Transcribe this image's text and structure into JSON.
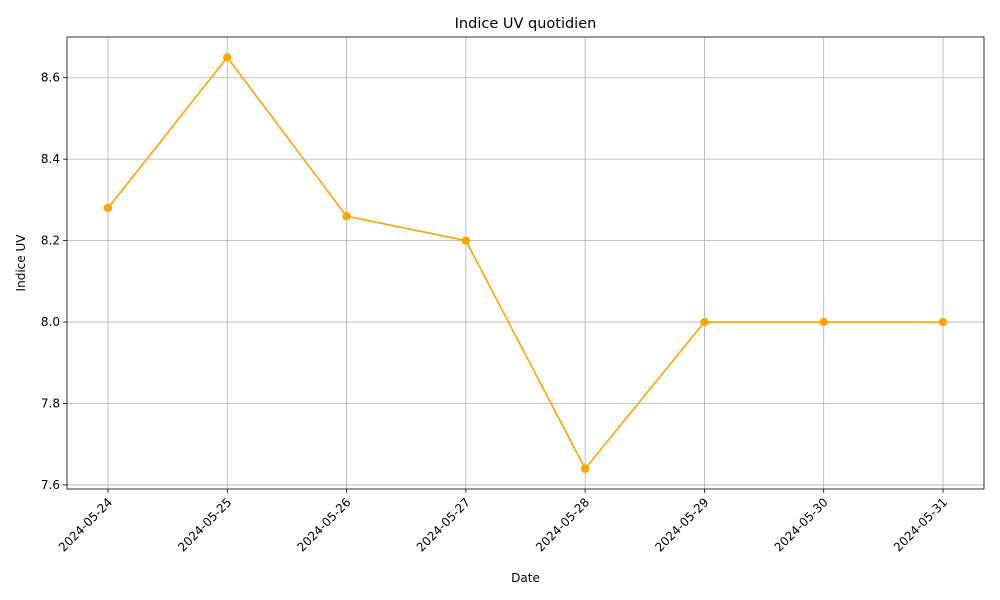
{
  "chart_data": {
    "type": "line",
    "title": "Indice UV quotidien",
    "xlabel": "Date",
    "ylabel": "Indice UV",
    "categories": [
      "2024-05-24",
      "2024-05-25",
      "2024-05-26",
      "2024-05-27",
      "2024-05-28",
      "2024-05-29",
      "2024-05-30",
      "2024-05-31"
    ],
    "series": [
      {
        "values": [
          8.28,
          8.65,
          8.26,
          8.2,
          7.64,
          8.0,
          8.0,
          8.0
        ],
        "color": "#ffa500",
        "marker": "circle"
      }
    ],
    "ylim": [
      7.59,
      8.7
    ],
    "yticks": [
      "7.6",
      "7.8",
      "8.0",
      "8.2",
      "8.4",
      "8.6"
    ],
    "grid": true,
    "x_tick_rotation": 45
  }
}
